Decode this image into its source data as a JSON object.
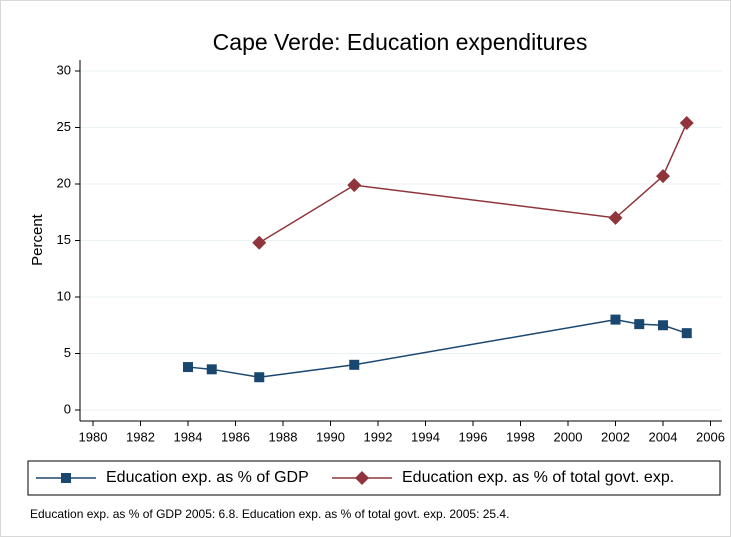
{
  "chart_data": {
    "type": "line",
    "title": "Cape Verde: Education expenditures",
    "ylabel": "Percent",
    "xlim": [
      1980,
      2006
    ],
    "xticks": [
      1980,
      1982,
      1984,
      1986,
      1988,
      1990,
      1992,
      1994,
      1996,
      1998,
      2000,
      2002,
      2004,
      2006
    ],
    "ylim": [
      0,
      30
    ],
    "yticks": [
      0,
      5,
      10,
      15,
      20,
      25,
      30
    ],
    "grid": true,
    "legend": "bottom",
    "series": [
      {
        "name": "Education exp. as % of GDP",
        "color": "#1a476f",
        "marker": "square",
        "x": [
          1984,
          1985,
          1987,
          1991,
          2002,
          2003,
          2004,
          2005
        ],
        "values": [
          3.8,
          3.6,
          2.9,
          4.0,
          8.0,
          7.6,
          7.5,
          6.8
        ]
      },
      {
        "name": "Education exp. as % of total govt. exp.",
        "color": "#90353b",
        "marker": "diamond",
        "x": [
          1987,
          1991,
          2002,
          2004,
          2005
        ],
        "values": [
          14.8,
          19.9,
          17.0,
          20.7,
          25.4
        ]
      }
    ],
    "note": "Education exp. as % of GDP 2005: 6.8. Education exp. as % of total govt. exp. 2005: 25.4."
  }
}
